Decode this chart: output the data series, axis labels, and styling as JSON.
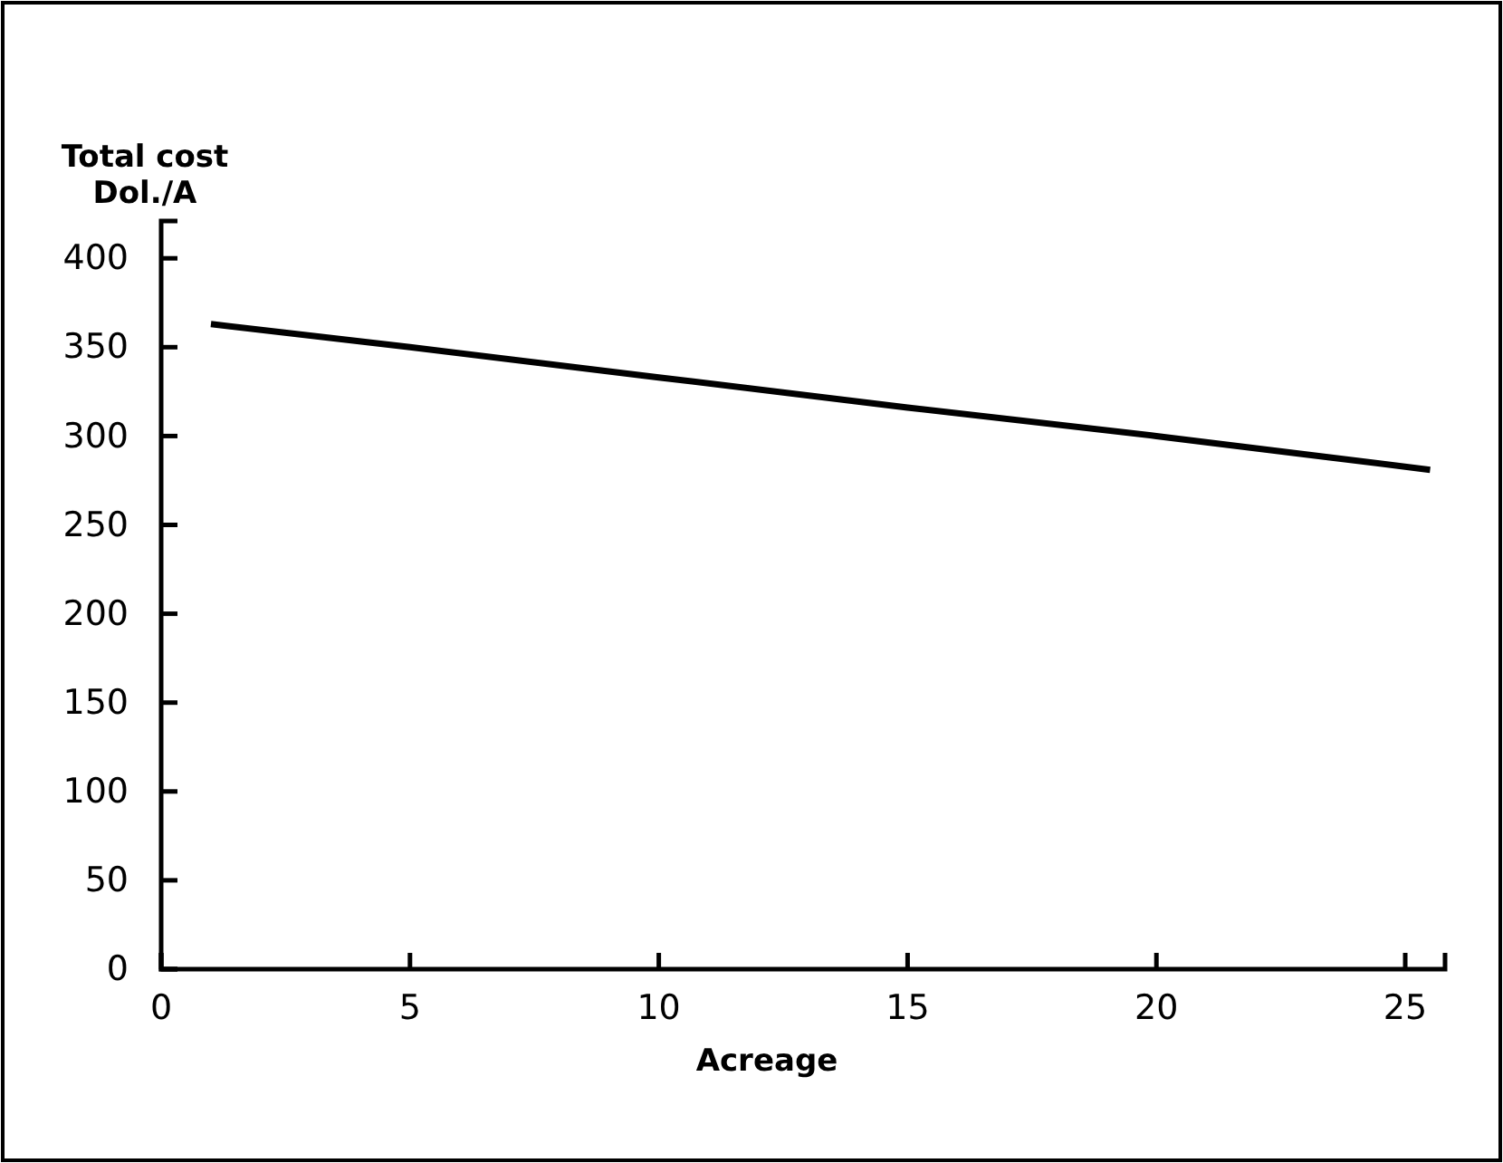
{
  "chart_data": {
    "type": "line",
    "ylabel": "Total cost\nDol./A",
    "xlabel": "Acreage",
    "x": [
      1,
      5,
      10,
      15,
      20,
      25.5
    ],
    "series": [
      {
        "color": "#000000",
        "values": [
          363,
          350,
          333,
          316,
          300,
          281
        ]
      }
    ],
    "xlim": [
      0,
      25.8
    ],
    "xticks": [
      0,
      5,
      10,
      15,
      20,
      25
    ],
    "ylim": [
      0,
      421
    ],
    "yticks": [
      0,
      50,
      100,
      150,
      200,
      250,
      300,
      350,
      400
    ],
    "grid": false,
    "marker": "none",
    "line_style": "solid"
  }
}
